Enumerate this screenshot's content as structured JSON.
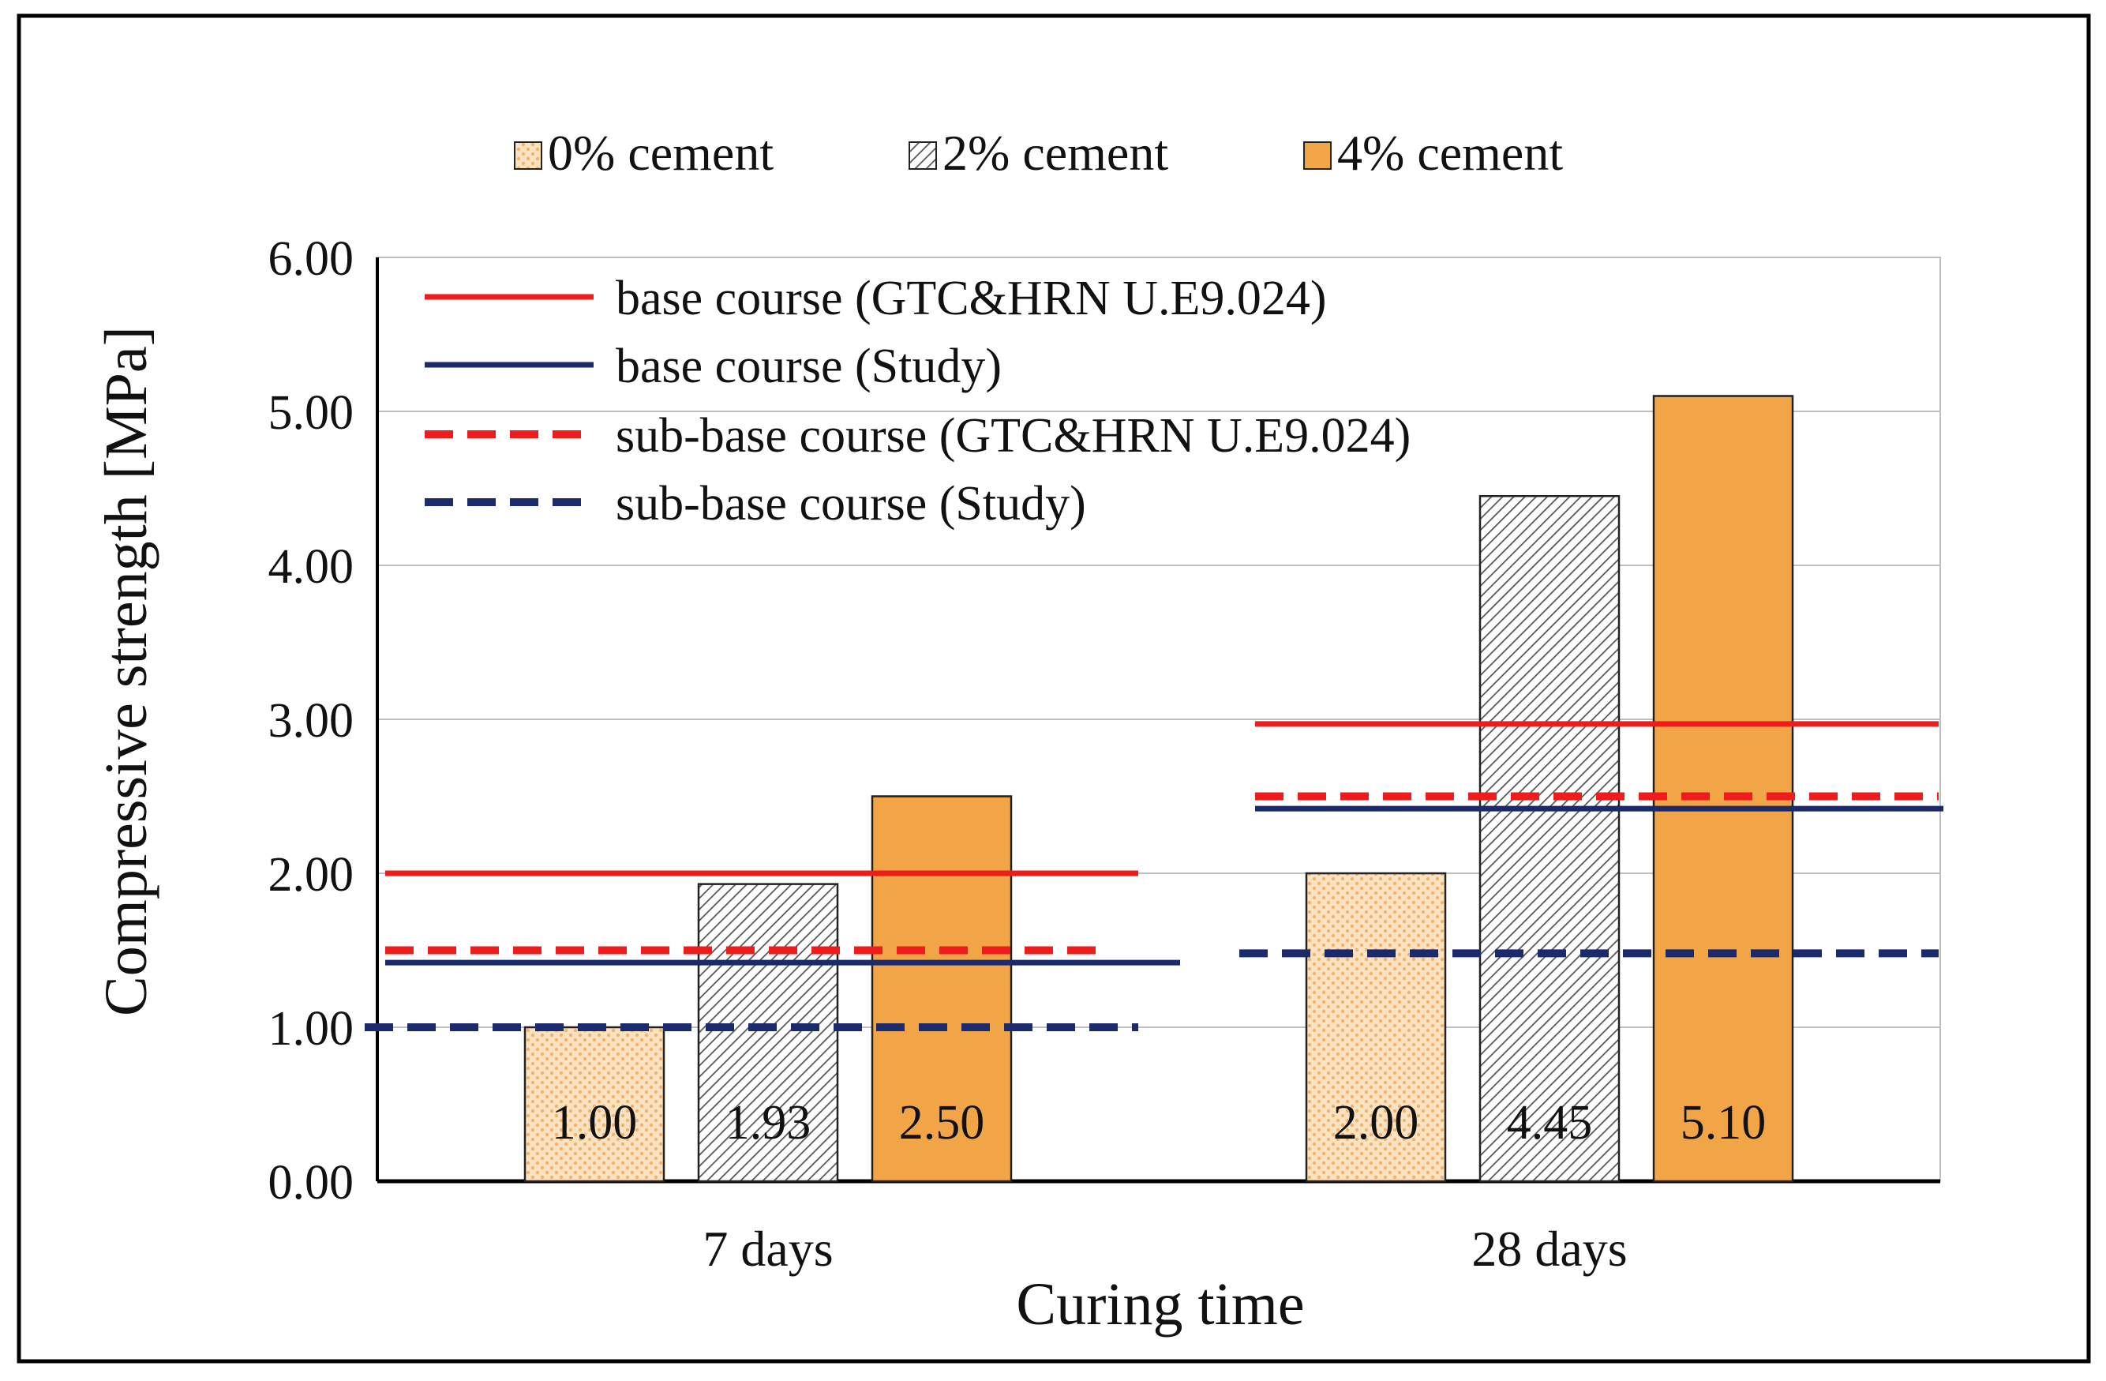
{
  "chart_data": {
    "type": "bar",
    "categories": [
      "7 days",
      "28 days"
    ],
    "series": [
      {
        "name": "0% cement",
        "values": [
          1.0,
          2.0
        ],
        "labels": [
          "1.00",
          "2.00"
        ],
        "pattern": "dots",
        "color": "#f5c58a"
      },
      {
        "name": "2% cement",
        "values": [
          1.93,
          4.45
        ],
        "labels": [
          "1.93",
          "4.45"
        ],
        "pattern": "hatch",
        "color": "#444444"
      },
      {
        "name": "4% cement",
        "values": [
          2.5,
          5.1
        ],
        "labels": [
          "2.50",
          "5.10"
        ],
        "pattern": "solid",
        "color": "#f2a546"
      }
    ],
    "reference_lines": [
      {
        "name": "base course (GTC&HRN U.E9.024)",
        "values": [
          2.0,
          2.97
        ],
        "color": "#ee1c1c",
        "dashed": false
      },
      {
        "name": "base course (Study)",
        "values": [
          1.42,
          2.42
        ],
        "color": "#1a2a6c",
        "dashed": false
      },
      {
        "name": "sub-base course (GTC&HRN U.E9.024)",
        "values": [
          1.5,
          2.5
        ],
        "color": "#ee1c1c",
        "dashed": true
      },
      {
        "name": "sub-base course (Study)",
        "values": [
          1.0,
          1.48
        ],
        "color": "#1a2a6c",
        "dashed": true
      }
    ],
    "title": "",
    "xlabel": "Curing time",
    "ylabel": "Compressive strength [MPa]",
    "ylim": [
      0,
      6
    ],
    "yticks": [
      "0.00",
      "1.00",
      "2.00",
      "3.00",
      "4.00",
      "5.00",
      "6.00"
    ],
    "grid": true,
    "legend_position": "top"
  }
}
